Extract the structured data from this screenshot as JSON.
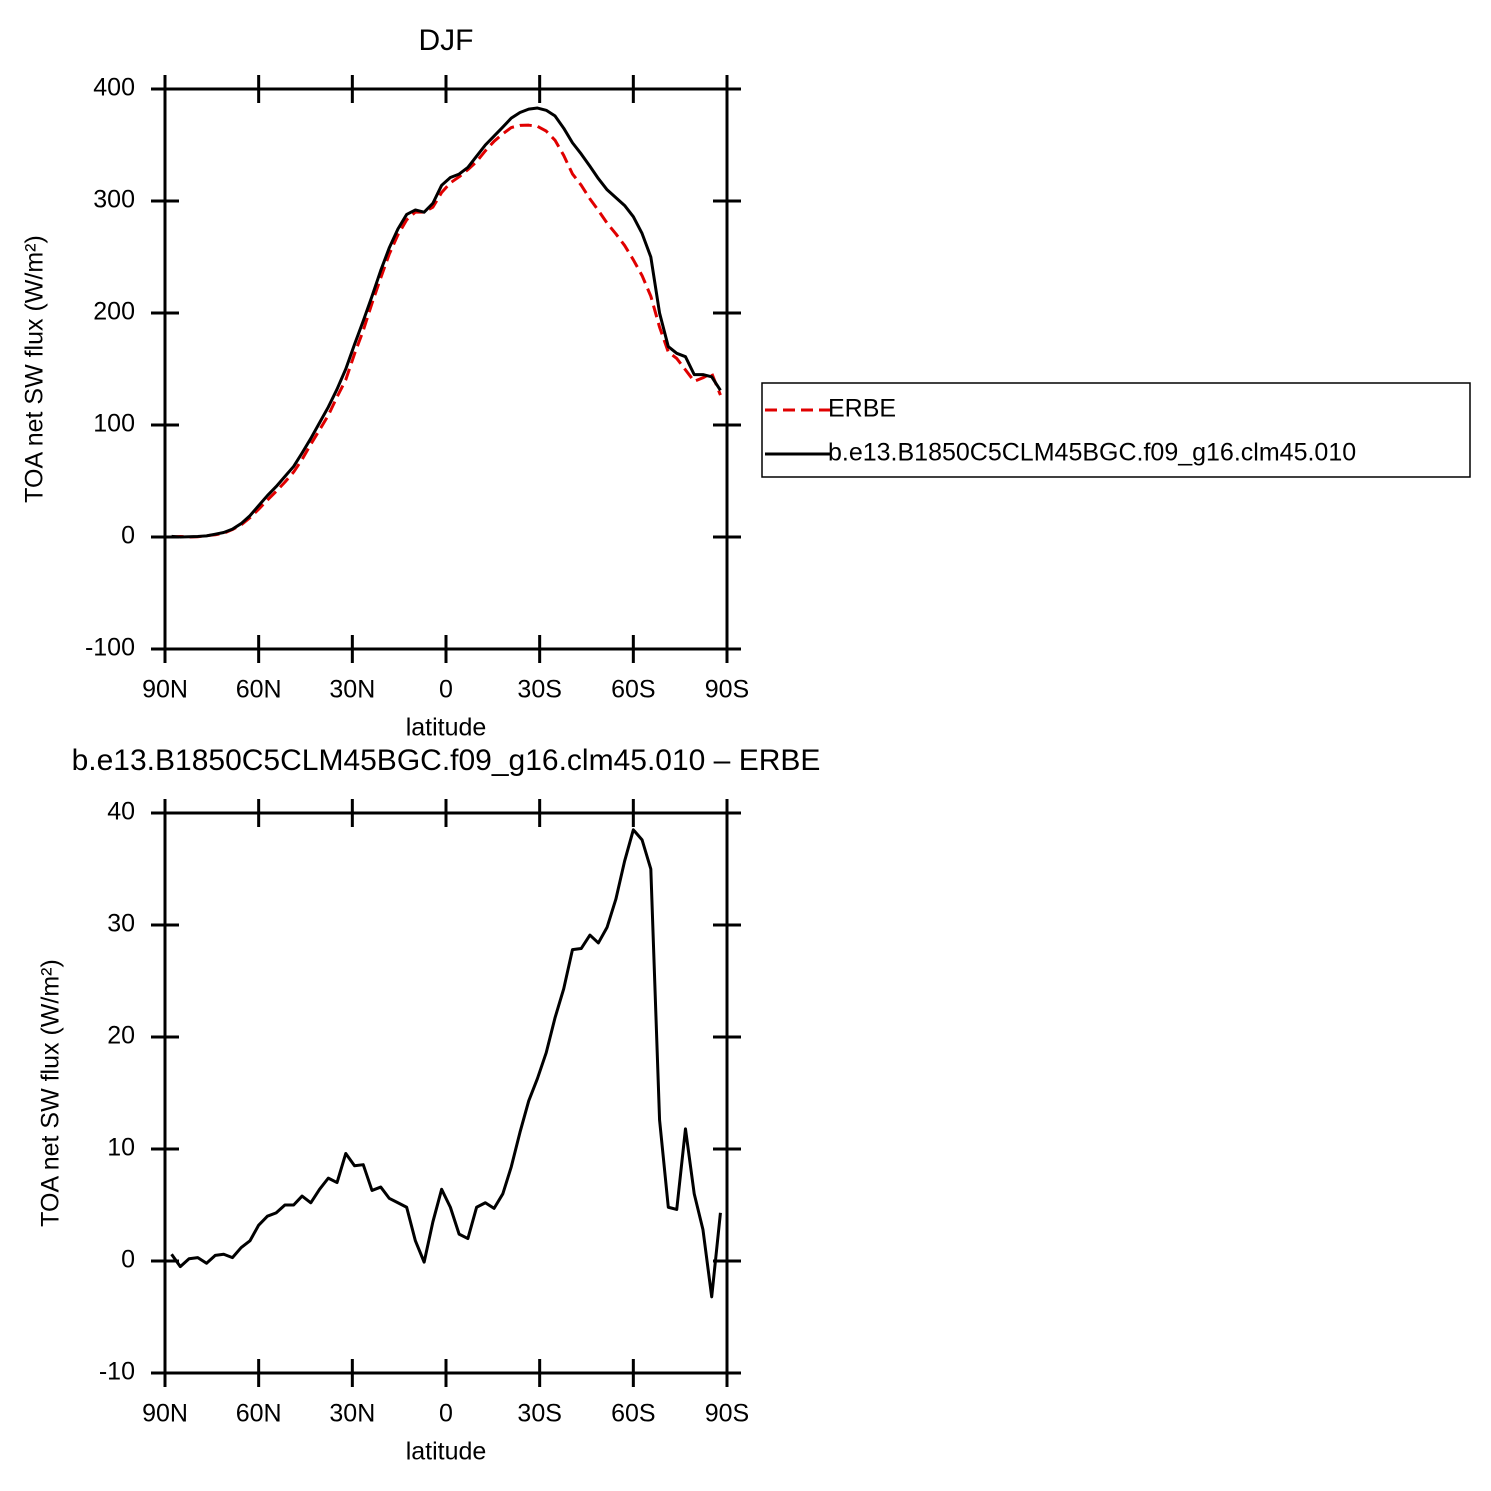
{
  "chart_data": [
    {
      "type": "line",
      "title": "DJF",
      "xlabel": "latitude",
      "ylabel": "TOA net SW flux (W/m²)",
      "x": [
        87.9,
        85.1,
        82.3,
        79.5,
        76.7,
        73.9,
        71.2,
        68.4,
        65.6,
        62.8,
        60.0,
        57.2,
        54.4,
        51.6,
        48.8,
        46.1,
        43.3,
        40.5,
        37.7,
        34.9,
        32.1,
        29.3,
        26.5,
        23.7,
        20.9,
        18.2,
        15.4,
        12.6,
        9.8,
        7.0,
        4.2,
        1.4,
        -1.4,
        -4.2,
        -7.0,
        -9.8,
        -12.6,
        -15.4,
        -18.2,
        -20.9,
        -23.7,
        -26.5,
        -29.3,
        -32.1,
        -34.9,
        -37.7,
        -40.5,
        -43.3,
        -46.1,
        -48.8,
        -51.6,
        -54.4,
        -57.2,
        -60.0,
        -62.8,
        -65.6,
        -68.4,
        -71.2,
        -73.9,
        -76.7,
        -79.5,
        -82.3,
        -85.1,
        -87.9
      ],
      "series": [
        {
          "name": "ERBE",
          "color": "#e00000",
          "linestyle": "dashed",
          "values": [
            0.0,
            0.5,
            0.0,
            0.2,
            1.2,
            2.0,
            3.4,
            6.7,
            10.8,
            17.2,
            24.8,
            33.0,
            40.7,
            49.0,
            58.0,
            69.2,
            82.8,
            95.6,
            108.6,
            125.0,
            140.4,
            163.5,
            184.4,
            208.7,
            231.4,
            252.4,
            269.8,
            283.2,
            290.2,
            290.1,
            294.5,
            307.6,
            316.2,
            321.6,
            328.0,
            335.2,
            344.8,
            353.3,
            360.0,
            365.6,
            367.5,
            367.7,
            366.7,
            362.4,
            354.3,
            340.7,
            324.2,
            314.1,
            301.9,
            291.6,
            280.2,
            270.7,
            260.3,
            247.5,
            233.4,
            215.0,
            187.4,
            165.2,
            159.4,
            149.2,
            139.0,
            142.2,
            146.2,
            126.7
          ]
        },
        {
          "name": "b.e13.B1850C5CLM45BGC.f09_g16.clm45.010",
          "color": "#000000",
          "linestyle": "solid",
          "values": [
            0.6,
            0,
            0.2,
            0.5,
            1,
            2.5,
            4,
            7,
            12,
            19,
            28,
            37,
            45,
            54,
            63,
            75,
            88,
            102,
            116,
            132,
            150,
            172,
            193,
            215,
            238,
            258,
            275,
            288,
            292,
            290,
            298,
            314,
            321,
            324,
            330,
            340,
            350,
            358,
            366,
            374,
            379,
            382,
            383,
            381,
            376,
            365,
            352,
            342,
            331,
            320,
            310,
            303,
            296,
            286,
            271,
            250,
            200,
            170,
            164,
            161,
            145,
            145,
            143,
            131
          ]
        }
      ],
      "xlim": [
        90,
        -90
      ],
      "xticks": [
        {
          "value": 90,
          "label": "90N"
        },
        {
          "value": 60,
          "label": "60N"
        },
        {
          "value": 30,
          "label": "30N"
        },
        {
          "value": 0,
          "label": "0"
        },
        {
          "value": -30,
          "label": "30S"
        },
        {
          "value": -60,
          "label": "60S"
        },
        {
          "value": -90,
          "label": "90S"
        }
      ],
      "ylim": [
        -100,
        400
      ],
      "yticks": [
        -100,
        0,
        100,
        200,
        300,
        400
      ],
      "legend": "right"
    },
    {
      "type": "line",
      "title": "b.e13.B1850C5CLM45BGC.f09_g16.clm45.010 – ERBE",
      "xlabel": "latitude",
      "ylabel": "TOA net SW flux (W/m²)",
      "x": [
        87.9,
        85.1,
        82.3,
        79.5,
        76.7,
        73.9,
        71.2,
        68.4,
        65.6,
        62.8,
        60.0,
        57.2,
        54.4,
        51.6,
        48.8,
        46.1,
        43.3,
        40.5,
        37.7,
        34.9,
        32.1,
        29.3,
        26.5,
        23.7,
        20.9,
        18.2,
        15.4,
        12.6,
        9.8,
        7.0,
        4.2,
        1.4,
        -1.4,
        -4.2,
        -7.0,
        -9.8,
        -12.6,
        -15.4,
        -18.2,
        -20.9,
        -23.7,
        -26.5,
        -29.3,
        -32.1,
        -34.9,
        -37.7,
        -40.5,
        -43.3,
        -46.1,
        -48.8,
        -51.6,
        -54.4,
        -57.2,
        -60.0,
        -62.8,
        -65.6,
        -68.4,
        -71.2,
        -73.9,
        -76.7,
        -79.5,
        -82.3,
        -85.1,
        -87.9
      ],
      "series": [
        {
          "color": "#000000",
          "linestyle": "solid",
          "values": [
            0.6,
            -0.5,
            0.2,
            0.3,
            -0.2,
            0.5,
            0.6,
            0.3,
            1.2,
            1.8,
            3.2,
            4.0,
            4.3,
            5.0,
            5.0,
            5.8,
            5.2,
            6.4,
            7.4,
            7.0,
            9.6,
            8.5,
            8.6,
            6.3,
            6.6,
            5.6,
            5.2,
            4.8,
            1.8,
            -0.1,
            3.5,
            6.4,
            4.8,
            2.4,
            2.0,
            4.8,
            5.2,
            4.7,
            6.0,
            8.4,
            11.5,
            14.3,
            16.3,
            18.6,
            21.7,
            24.3,
            27.8,
            27.9,
            29.1,
            28.4,
            29.8,
            32.3,
            35.7,
            38.5,
            37.6,
            35.0,
            12.6,
            4.8,
            4.6,
            11.8,
            6.0,
            2.8,
            -3.2,
            4.3
          ]
        }
      ],
      "xlim": [
        90,
        -90
      ],
      "xticks": [
        {
          "value": 90,
          "label": "90N"
        },
        {
          "value": 60,
          "label": "60N"
        },
        {
          "value": 30,
          "label": "30N"
        },
        {
          "value": 0,
          "label": "0"
        },
        {
          "value": -30,
          "label": "30S"
        },
        {
          "value": -60,
          "label": "60S"
        },
        {
          "value": -90,
          "label": "90S"
        }
      ],
      "ylim": [
        -10,
        40
      ],
      "yticks": [
        -10,
        0,
        10,
        20,
        30,
        40
      ]
    }
  ]
}
